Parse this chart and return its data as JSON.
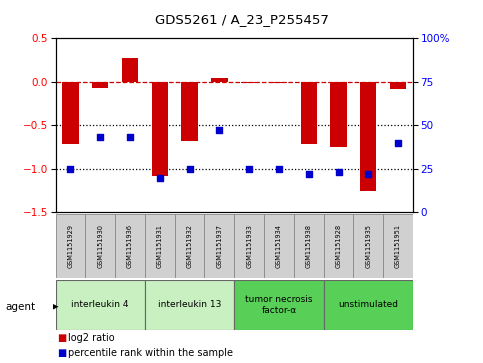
{
  "title": "GDS5261 / A_23_P255457",
  "samples": [
    "GSM1151929",
    "GSM1151930",
    "GSM1151936",
    "GSM1151931",
    "GSM1151932",
    "GSM1151937",
    "GSM1151933",
    "GSM1151934",
    "GSM1151938",
    "GSM1151928",
    "GSM1151935",
    "GSM1151951"
  ],
  "log2_ratio": [
    -0.72,
    -0.07,
    0.27,
    -1.08,
    -0.68,
    0.04,
    -0.02,
    -0.02,
    -0.72,
    -0.75,
    -1.25,
    -0.08
  ],
  "percentile_rank": [
    25,
    43,
    43,
    20,
    25,
    47,
    25,
    25,
    22,
    23,
    22,
    40
  ],
  "groups": [
    {
      "label": "interleukin 4",
      "start": 0,
      "end": 3,
      "color": "#c8f0c0"
    },
    {
      "label": "interleukin 13",
      "start": 3,
      "end": 6,
      "color": "#c8f0c0"
    },
    {
      "label": "tumor necrosis\nfactor-α",
      "start": 6,
      "end": 9,
      "color": "#58d058"
    },
    {
      "label": "unstimulated",
      "start": 9,
      "end": 12,
      "color": "#58d058"
    }
  ],
  "bar_color": "#cc0000",
  "dot_color": "#0000cc",
  "ylim_left": [
    -1.5,
    0.5
  ],
  "ylim_right": [
    0,
    100
  ],
  "yticks_left": [
    -1.5,
    -1.0,
    -0.5,
    0.0,
    0.5
  ],
  "yticks_right": [
    0,
    25,
    50,
    75,
    100
  ],
  "yticklabels_right": [
    "0",
    "25",
    "50",
    "75",
    "100%"
  ],
  "hline_dashed_color": "#cc0000",
  "hlines_dotted": [
    -0.5,
    -1.0
  ],
  "bar_width": 0.55,
  "background_color": "#ffffff",
  "sample_box_color": "#d0d0d0",
  "legend_bar_color": "#cc0000",
  "legend_dot_color": "#0000cc"
}
